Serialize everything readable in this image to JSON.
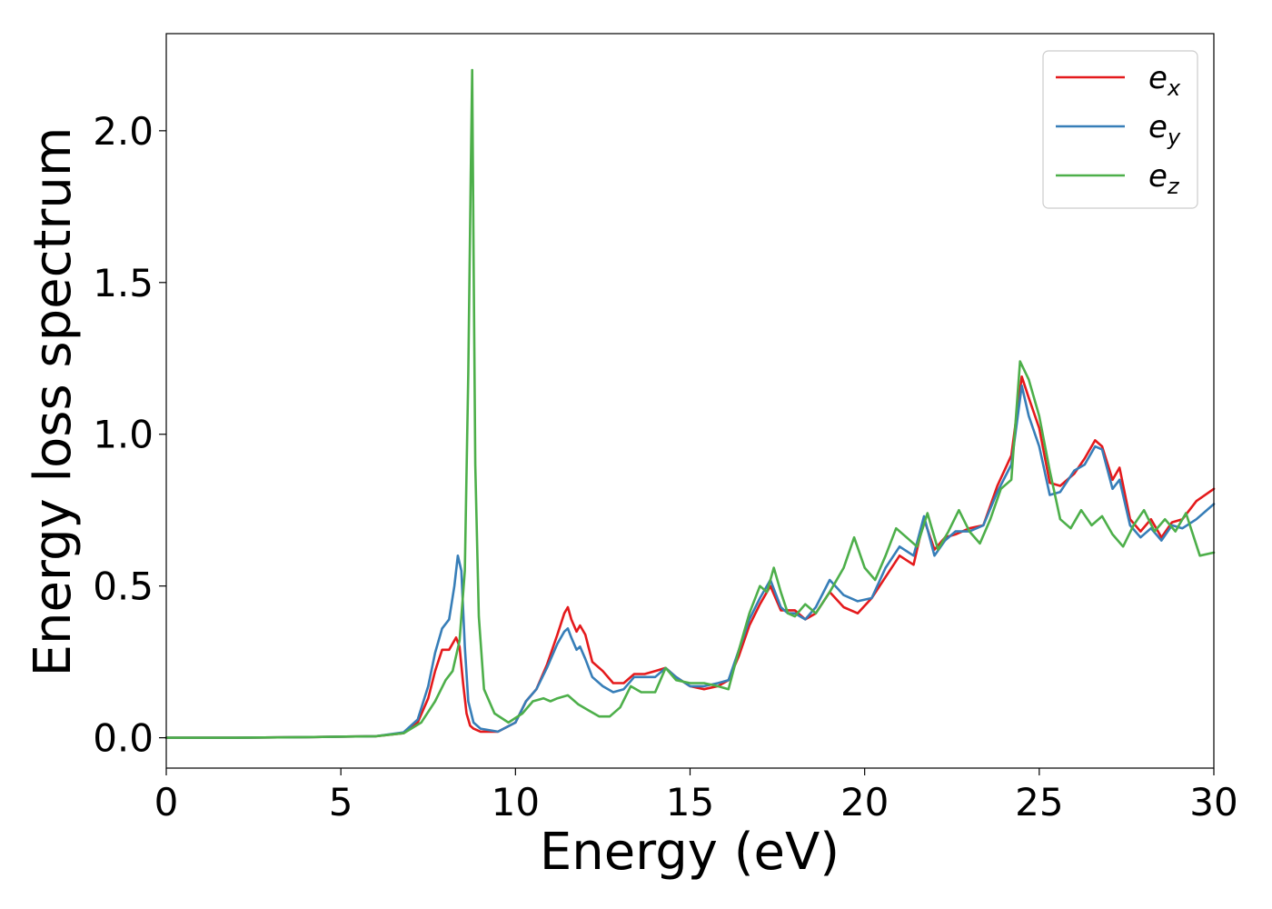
{
  "chart_data": {
    "type": "line",
    "xlabel": "Energy (eV)",
    "ylabel": "Energy loss spectrum",
    "xlim": [
      0,
      30
    ],
    "ylim": [
      -0.1,
      2.32
    ],
    "xticks": [
      "0",
      "5",
      "10",
      "15",
      "20",
      "25",
      "30"
    ],
    "yticks": [
      "0.0",
      "0.5",
      "1.0",
      "1.5",
      "2.0"
    ],
    "grid": false,
    "legend_position": "top-right",
    "series": [
      {
        "name": "e_x",
        "legend_base": "e",
        "legend_sub": "x",
        "color": "#e41a1c",
        "x": [
          0,
          2,
          4,
          6,
          6.8,
          7.2,
          7.5,
          7.7,
          7.9,
          8.1,
          8.3,
          8.4,
          8.5,
          8.6,
          8.7,
          8.8,
          9.0,
          9.5,
          10.0,
          10.3,
          10.6,
          10.9,
          11.2,
          11.4,
          11.5,
          11.6,
          11.75,
          11.85,
          12.0,
          12.2,
          12.5,
          12.8,
          13.1,
          13.4,
          13.7,
          14.0,
          14.3,
          14.6,
          15.0,
          15.4,
          15.8,
          16.1,
          16.4,
          16.7,
          17.0,
          17.3,
          17.6,
          17.8,
          18.0,
          18.3,
          18.6,
          19.0,
          19.4,
          19.8,
          20.2,
          20.6,
          21.0,
          21.4,
          21.7,
          22.0,
          22.3,
          22.6,
          23.0,
          23.4,
          23.8,
          24.2,
          24.5,
          24.7,
          25.0,
          25.3,
          25.6,
          26.0,
          26.3,
          26.6,
          26.8,
          27.1,
          27.3,
          27.6,
          27.9,
          28.2,
          28.5,
          28.8,
          29.1,
          29.5,
          30.0
        ],
        "y": [
          0.0,
          0.0,
          0.002,
          0.005,
          0.015,
          0.05,
          0.13,
          0.22,
          0.29,
          0.29,
          0.33,
          0.3,
          0.18,
          0.08,
          0.04,
          0.03,
          0.02,
          0.02,
          0.05,
          0.12,
          0.16,
          0.24,
          0.34,
          0.41,
          0.43,
          0.39,
          0.35,
          0.37,
          0.34,
          0.25,
          0.22,
          0.18,
          0.18,
          0.21,
          0.21,
          0.22,
          0.23,
          0.2,
          0.17,
          0.16,
          0.17,
          0.19,
          0.27,
          0.37,
          0.44,
          0.5,
          0.42,
          0.42,
          0.42,
          0.39,
          0.41,
          0.48,
          0.43,
          0.41,
          0.46,
          0.53,
          0.6,
          0.57,
          0.72,
          0.62,
          0.66,
          0.67,
          0.69,
          0.7,
          0.83,
          0.93,
          1.19,
          1.12,
          1.02,
          0.84,
          0.83,
          0.87,
          0.92,
          0.98,
          0.96,
          0.85,
          0.89,
          0.72,
          0.68,
          0.72,
          0.66,
          0.71,
          0.72,
          0.78,
          0.82
        ]
      },
      {
        "name": "e_y",
        "legend_base": "e",
        "legend_sub": "y",
        "color": "#377eb8",
        "x": [
          0,
          2,
          4,
          6,
          6.8,
          7.2,
          7.5,
          7.7,
          7.9,
          8.1,
          8.25,
          8.35,
          8.45,
          8.55,
          8.65,
          8.8,
          9.0,
          9.5,
          10.0,
          10.3,
          10.6,
          10.9,
          11.2,
          11.4,
          11.5,
          11.6,
          11.75,
          11.85,
          12.0,
          12.2,
          12.5,
          12.8,
          13.1,
          13.4,
          13.7,
          14.0,
          14.3,
          14.6,
          15.0,
          15.4,
          15.8,
          16.1,
          16.4,
          16.7,
          17.0,
          17.3,
          17.6,
          17.8,
          18.0,
          18.3,
          18.6,
          19.0,
          19.4,
          19.8,
          20.2,
          20.6,
          21.0,
          21.4,
          21.7,
          22.0,
          22.3,
          22.6,
          23.0,
          23.4,
          23.8,
          24.2,
          24.5,
          24.7,
          25.0,
          25.3,
          25.6,
          26.0,
          26.3,
          26.6,
          26.8,
          27.1,
          27.3,
          27.6,
          27.9,
          28.2,
          28.5,
          28.8,
          29.1,
          29.5,
          30.0
        ],
        "y": [
          0.0,
          0.0,
          0.002,
          0.005,
          0.018,
          0.06,
          0.17,
          0.28,
          0.36,
          0.39,
          0.5,
          0.6,
          0.55,
          0.3,
          0.12,
          0.05,
          0.03,
          0.02,
          0.05,
          0.12,
          0.16,
          0.23,
          0.31,
          0.35,
          0.36,
          0.33,
          0.29,
          0.3,
          0.26,
          0.2,
          0.17,
          0.15,
          0.16,
          0.2,
          0.2,
          0.2,
          0.23,
          0.2,
          0.17,
          0.17,
          0.18,
          0.19,
          0.29,
          0.39,
          0.46,
          0.52,
          0.43,
          0.41,
          0.41,
          0.39,
          0.43,
          0.52,
          0.47,
          0.45,
          0.46,
          0.56,
          0.63,
          0.6,
          0.73,
          0.6,
          0.65,
          0.68,
          0.68,
          0.7,
          0.81,
          0.9,
          1.16,
          1.06,
          0.96,
          0.8,
          0.81,
          0.88,
          0.9,
          0.96,
          0.95,
          0.82,
          0.85,
          0.7,
          0.66,
          0.69,
          0.65,
          0.7,
          0.69,
          0.72,
          0.77
        ]
      },
      {
        "name": "e_z",
        "legend_base": "e",
        "legend_sub": "z",
        "color": "#4daf4a",
        "x": [
          0,
          2,
          4,
          6,
          6.8,
          7.3,
          7.7,
          8.0,
          8.2,
          8.4,
          8.55,
          8.65,
          8.72,
          8.76,
          8.8,
          8.85,
          8.95,
          9.1,
          9.4,
          9.8,
          10.2,
          10.5,
          10.8,
          11.0,
          11.2,
          11.5,
          11.8,
          12.1,
          12.4,
          12.7,
          13.0,
          13.3,
          13.6,
          14.0,
          14.3,
          14.6,
          15.0,
          15.4,
          15.8,
          16.1,
          16.4,
          16.7,
          17.0,
          17.2,
          17.4,
          17.6,
          17.8,
          18.0,
          18.3,
          18.6,
          19.0,
          19.4,
          19.7,
          20.0,
          20.3,
          20.6,
          20.9,
          21.2,
          21.5,
          21.8,
          22.1,
          22.4,
          22.7,
          23.0,
          23.3,
          23.6,
          23.9,
          24.2,
          24.45,
          24.7,
          25.0,
          25.3,
          25.6,
          25.9,
          26.2,
          26.5,
          26.8,
          27.1,
          27.4,
          27.7,
          28.0,
          28.3,
          28.6,
          28.9,
          29.2,
          29.6,
          30.0
        ],
        "y": [
          0.0,
          0.0,
          0.002,
          0.005,
          0.015,
          0.05,
          0.12,
          0.19,
          0.22,
          0.32,
          0.55,
          1.2,
          1.85,
          2.2,
          1.6,
          0.9,
          0.4,
          0.16,
          0.08,
          0.05,
          0.08,
          0.12,
          0.13,
          0.12,
          0.13,
          0.14,
          0.11,
          0.09,
          0.07,
          0.07,
          0.1,
          0.17,
          0.15,
          0.15,
          0.23,
          0.19,
          0.18,
          0.18,
          0.17,
          0.16,
          0.29,
          0.41,
          0.5,
          0.48,
          0.56,
          0.48,
          0.41,
          0.4,
          0.44,
          0.41,
          0.48,
          0.56,
          0.66,
          0.56,
          0.52,
          0.6,
          0.69,
          0.66,
          0.63,
          0.74,
          0.62,
          0.68,
          0.75,
          0.68,
          0.64,
          0.72,
          0.82,
          0.85,
          1.24,
          1.18,
          1.06,
          0.88,
          0.72,
          0.69,
          0.75,
          0.7,
          0.73,
          0.67,
          0.63,
          0.7,
          0.75,
          0.68,
          0.72,
          0.68,
          0.74,
          0.6,
          0.61
        ]
      }
    ]
  }
}
